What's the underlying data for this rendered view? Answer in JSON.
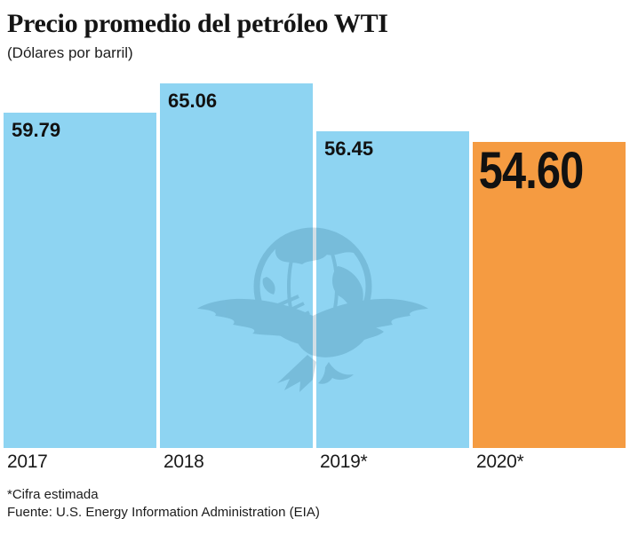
{
  "header": {
    "title": "Precio promedio del petróleo WTI",
    "subtitle": "(Dólares por barril)"
  },
  "chart_data": {
    "type": "bar",
    "title": "Precio promedio del petróleo WTI",
    "subtitle": "(Dólares por barril)",
    "categories": [
      "2017",
      "2018",
      "2019*",
      "2020*"
    ],
    "values": [
      59.79,
      65.06,
      56.45,
      54.6
    ],
    "value_labels": [
      "59.79",
      "65.06",
      "56.45",
      "54.60"
    ],
    "bar_colors": [
      "#8ED4F2",
      "#8ED4F2",
      "#8ED4F2",
      "#F59B41"
    ],
    "highlight_index": 3,
    "ylim": [
      0,
      65.06
    ],
    "grid": false,
    "legend": false,
    "orientation": "vertical",
    "value_label_position": "inside-top-left"
  },
  "watermark": {
    "name": "eagle-globe-newspaper-emblem",
    "color": "#1F5F80",
    "opacity": 0.2
  },
  "footer": {
    "note": "*Cifra estimada",
    "source": "Fuente: U.S. Energy Information Administration (EIA)"
  },
  "colors": {
    "bar_blue": "#8ED4F2",
    "bar_orange": "#F59B41",
    "text": "#141414",
    "background": "#ffffff"
  }
}
